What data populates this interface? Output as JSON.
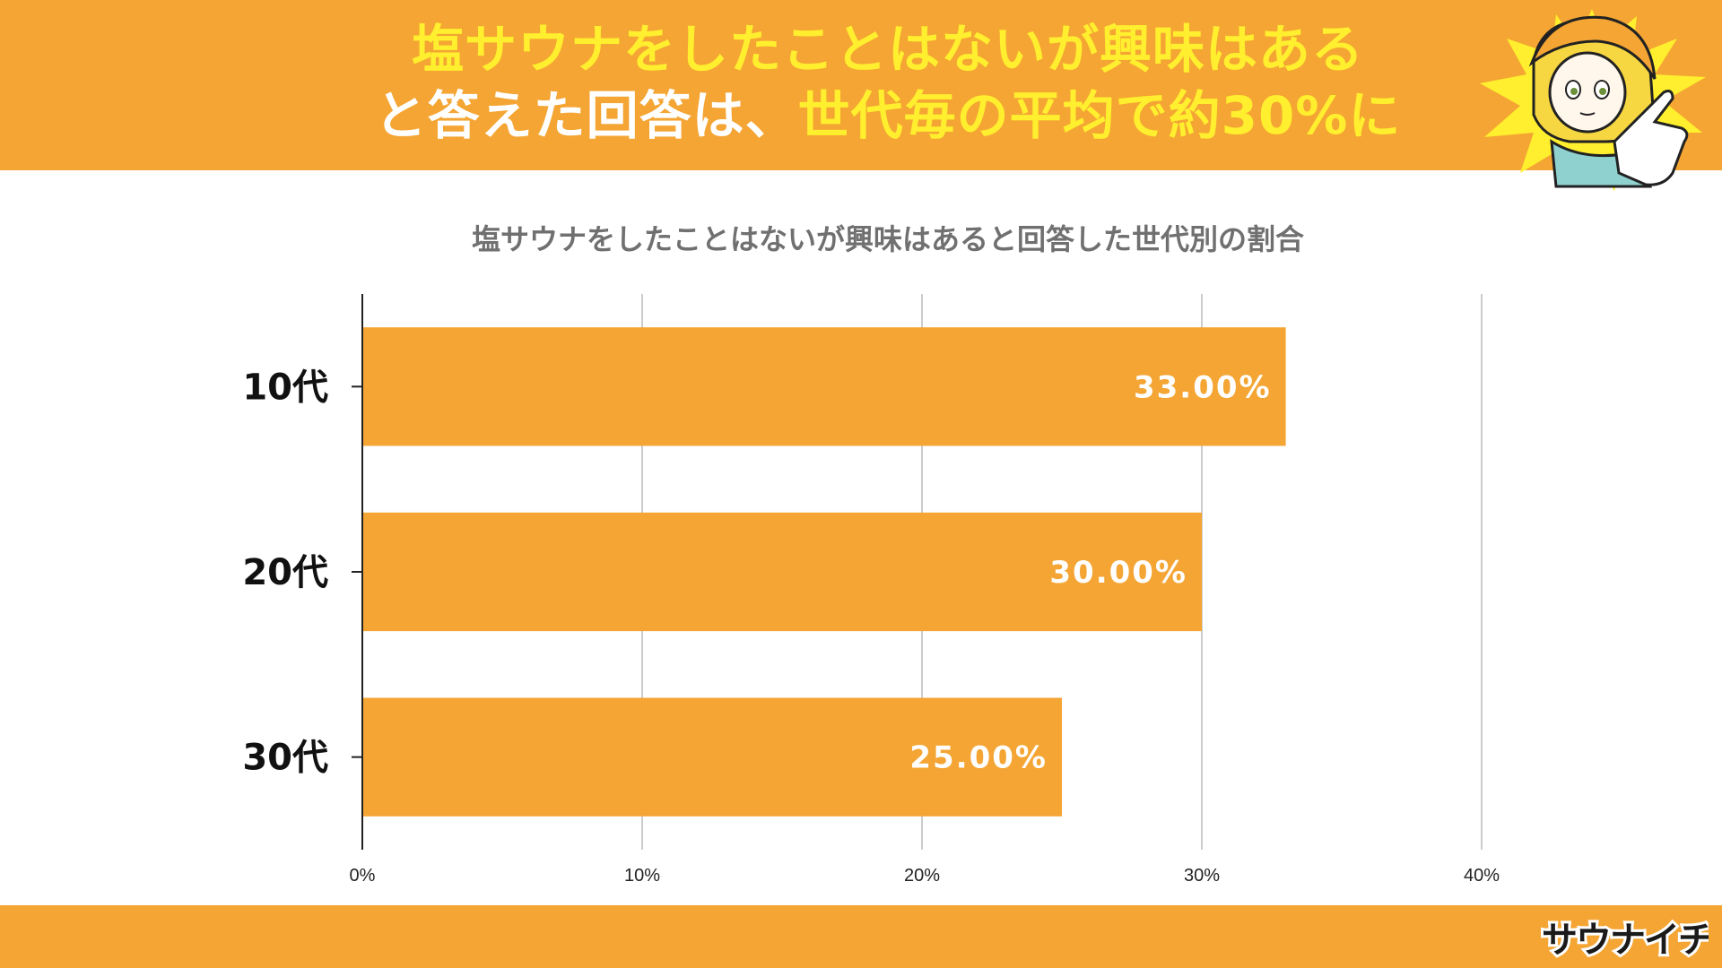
{
  "header": {
    "line1": "塩サウナをしたことはないが興味はある",
    "line2_white": "と答えた回答は、",
    "line2_yellow": "世代毎の平均で約30%に"
  },
  "logo_text": "サウナイチ",
  "colors": {
    "banner": "#f4a533",
    "bar": "#f4a533",
    "headline_yellow": "#ffef2e",
    "title_gray": "#707070"
  },
  "chart_data": {
    "type": "bar",
    "orientation": "horizontal",
    "title": "塩サウナをしたことはないが興味はあると回答した世代別の割合",
    "categories": [
      "10代",
      "20代",
      "30代"
    ],
    "values": [
      33.0,
      30.0,
      25.0
    ],
    "value_labels": [
      "33.00%",
      "30.00%",
      "25.00%"
    ],
    "xlim": [
      0,
      40
    ],
    "xticks": [
      0,
      10,
      20,
      30,
      40
    ],
    "xtick_labels": [
      "0%",
      "10%",
      "20%",
      "30%",
      "40%"
    ],
    "grid": "vertical"
  }
}
